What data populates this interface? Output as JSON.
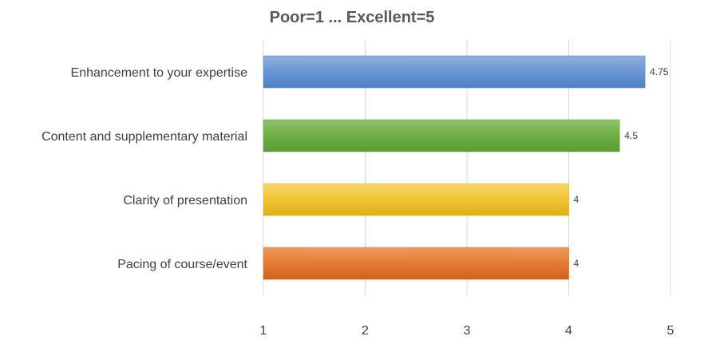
{
  "chart_data": {
    "type": "bar",
    "orientation": "horizontal",
    "title": "Poor=1 ... Excellent=5",
    "xlabel": "",
    "ylabel": "",
    "xlim": [
      1,
      5
    ],
    "ticks": [
      "1",
      "2",
      "3",
      "4",
      "5"
    ],
    "grid": true,
    "legend": "none",
    "categories": [
      "Enhancement to your expertise",
      "Content and supplementary material",
      "Clarity of presentation",
      "Pacing of course/event"
    ],
    "values": [
      4.75,
      4.5,
      4,
      4
    ],
    "data_labels": [
      "4.75",
      "4.5",
      "4",
      "4"
    ],
    "colors": [
      [
        "#8fb0e0",
        "#6a96d4",
        "#4f7fc4"
      ],
      [
        "#8fc468",
        "#6fae45",
        "#5b9a35"
      ],
      [
        "#f7d867",
        "#f2c431",
        "#dcae1c"
      ],
      [
        "#ee9a5f",
        "#e47a33",
        "#cc6420"
      ]
    ]
  }
}
